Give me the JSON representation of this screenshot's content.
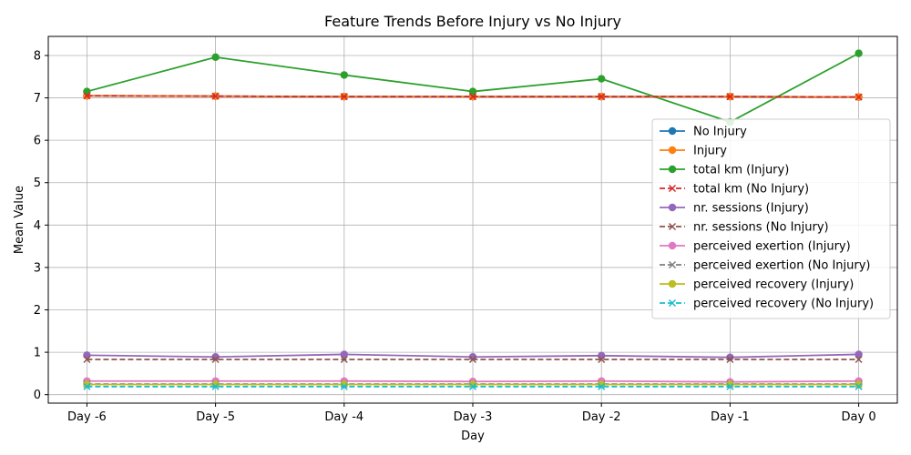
{
  "chart_data": {
    "type": "line",
    "title": "Feature Trends Before Injury vs No Injury",
    "xlabel": "Day",
    "ylabel": "Mean Value",
    "categories": [
      "Day -6",
      "Day -5",
      "Day -4",
      "Day -3",
      "Day -2",
      "Day -1",
      "Day 0"
    ],
    "ylim": [
      -0.2,
      8.45
    ],
    "yticks": [
      0,
      1,
      2,
      3,
      4,
      5,
      6,
      7,
      8
    ],
    "grid": true,
    "legend_position": "center-right",
    "series": [
      {
        "name": "No Injury",
        "color": "#1f77b4",
        "marker": "circle",
        "dash": false,
        "values": [
          7.05,
          7.04,
          7.03,
          7.03,
          7.03,
          7.03,
          7.02
        ]
      },
      {
        "name": "Injury",
        "color": "#ff7f0e",
        "marker": "circle",
        "dash": false,
        "values": [
          7.05,
          7.04,
          7.03,
          7.03,
          7.03,
          7.03,
          7.02
        ]
      },
      {
        "name": "total km (Injury)",
        "color": "#2ca02c",
        "marker": "circle",
        "dash": false,
        "values": [
          7.15,
          7.96,
          7.54,
          7.15,
          7.45,
          6.43,
          8.05
        ]
      },
      {
        "name": "total km (No Injury)",
        "color": "#d62728",
        "marker": "x",
        "dash": true,
        "values": [
          7.05,
          7.04,
          7.03,
          7.03,
          7.03,
          7.03,
          7.02
        ]
      },
      {
        "name": "nr. sessions (Injury)",
        "color": "#9467bd",
        "marker": "circle",
        "dash": false,
        "values": [
          0.93,
          0.89,
          0.95,
          0.89,
          0.92,
          0.88,
          0.95
        ]
      },
      {
        "name": "nr. sessions (No Injury)",
        "color": "#8c564b",
        "marker": "x",
        "dash": true,
        "values": [
          0.83,
          0.83,
          0.83,
          0.83,
          0.83,
          0.83,
          0.83
        ]
      },
      {
        "name": "perceived exertion (Injury)",
        "color": "#e377c2",
        "marker": "circle",
        "dash": false,
        "values": [
          0.32,
          0.32,
          0.32,
          0.31,
          0.32,
          0.3,
          0.32
        ]
      },
      {
        "name": "perceived exertion (No Injury)",
        "color": "#7f7f7f",
        "marker": "x",
        "dash": true,
        "values": [
          0.25,
          0.25,
          0.25,
          0.25,
          0.25,
          0.25,
          0.25
        ]
      },
      {
        "name": "perceived recovery (Injury)",
        "color": "#bcbd22",
        "marker": "circle",
        "dash": false,
        "values": [
          0.24,
          0.24,
          0.24,
          0.24,
          0.24,
          0.24,
          0.24
        ]
      },
      {
        "name": "perceived recovery (No Injury)",
        "color": "#17becf",
        "marker": "x",
        "dash": true,
        "values": [
          0.19,
          0.19,
          0.19,
          0.19,
          0.19,
          0.19,
          0.19
        ]
      }
    ]
  }
}
